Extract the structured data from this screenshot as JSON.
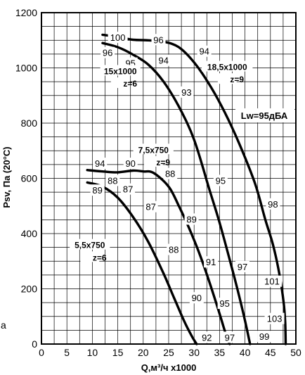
{
  "chart_data": {
    "type": "line",
    "xlabel": "Q,м³/ч x1000",
    "ylabel": "Psv, Па (20°C)",
    "xlim": [
      0,
      50
    ],
    "ylim": [
      0,
      1200
    ],
    "x_ticks": [
      "0",
      "5",
      "10",
      "15",
      "20",
      "25",
      "30",
      "35",
      "40",
      "45",
      "50"
    ],
    "y_ticks": [
      "0",
      "200",
      "400",
      "600",
      "800",
      "1000",
      "1200"
    ],
    "grid": true,
    "annotation": "Lw=95дБА",
    "stray_label": "a",
    "series": [
      {
        "name": "18,5x1000 z=9",
        "label_lines": [
          "18,5x1000",
          "z=9"
        ],
        "x": [
          12,
          15,
          18,
          21,
          24,
          27,
          30,
          33,
          36,
          39,
          42,
          44,
          45.5,
          46.8,
          47.6,
          47.9,
          48
        ],
        "y": [
          1120,
          1112,
          1102,
          1100,
          1095,
          1075,
          1020,
          940,
          840,
          720,
          580,
          450,
          360,
          250,
          150,
          80,
          0
        ],
        "noise_labels": [
          {
            "text": "100",
            "x": 15,
            "y": 1108
          },
          {
            "text": "96",
            "x": 23,
            "y": 1100
          },
          {
            "text": "94",
            "x": 32,
            "y": 1058
          },
          {
            "text": "98",
            "x": 45.5,
            "y": 505
          },
          {
            "text": "101",
            "x": 45.3,
            "y": 225
          },
          {
            "text": "103",
            "x": 45.8,
            "y": 90
          },
          {
            "text": "99",
            "x": 43.8,
            "y": 25
          }
        ]
      },
      {
        "name": "15x1000 z=6",
        "label_lines": [
          "15x1000",
          "z=6"
        ],
        "x": [
          12,
          15,
          18,
          21,
          24,
          27,
          30,
          33,
          35,
          37,
          38.5,
          40,
          41
        ],
        "y": [
          1090,
          1075,
          1048,
          1012,
          950,
          860,
          740,
          560,
          440,
          305,
          200,
          85,
          0
        ],
        "noise_labels": [
          {
            "text": "96",
            "x": 13,
            "y": 1053
          },
          {
            "text": "95",
            "x": 17.5,
            "y": 1015
          },
          {
            "text": "94",
            "x": 24,
            "y": 1025
          },
          {
            "text": "93",
            "x": 28.5,
            "y": 910
          },
          {
            "text": "95",
            "x": 35.2,
            "y": 590
          },
          {
            "text": "97",
            "x": 39.5,
            "y": 278
          },
          {
            "text": "95",
            "x": 36,
            "y": 145
          }
        ]
      },
      {
        "name": "7,5x750 z=9",
        "label_lines": [
          "7,5x750",
          "z=9"
        ],
        "x": [
          9,
          12,
          15,
          18,
          20,
          22,
          25,
          27,
          29,
          31,
          33,
          35,
          36.5,
          37
        ],
        "y": [
          630,
          625,
          622,
          628,
          625,
          620,
          570,
          500,
          420,
          330,
          225,
          110,
          20,
          0
        ],
        "noise_labels": [
          {
            "text": "94",
            "x": 11.5,
            "y": 652
          },
          {
            "text": "90",
            "x": 17.5,
            "y": 652
          },
          {
            "text": "88",
            "x": 14,
            "y": 590
          },
          {
            "text": "87",
            "x": 17,
            "y": 559
          },
          {
            "text": "88",
            "x": 25.3,
            "y": 615
          },
          {
            "text": "89",
            "x": 29.5,
            "y": 450
          },
          {
            "text": "91",
            "x": 33.3,
            "y": 295
          },
          {
            "text": "97",
            "x": 37,
            "y": 22
          }
        ]
      },
      {
        "name": "5,5x750 z=6",
        "label_lines": [
          "5,5x750",
          "z=6"
        ],
        "x": [
          9,
          12,
          15,
          18,
          21,
          24,
          26,
          28,
          29.5,
          30.5
        ],
        "y": [
          585,
          570,
          530,
          460,
          370,
          255,
          170,
          85,
          30,
          0
        ],
        "noise_labels": [
          {
            "text": "89",
            "x": 11,
            "y": 555
          },
          {
            "text": "87",
            "x": 21.5,
            "y": 495
          },
          {
            "text": "88",
            "x": 26,
            "y": 340
          },
          {
            "text": "90",
            "x": 30.5,
            "y": 165
          },
          {
            "text": "92",
            "x": 32.5,
            "y": 22
          }
        ]
      }
    ],
    "curve_label_positions": [
      {
        "x": 36.5,
        "y1": 1000,
        "y2": 955
      },
      {
        "x": 15.5,
        "y1": 985,
        "y2": 940
      },
      {
        "x": 22,
        "y1": 700,
        "y2": 655
      },
      {
        "x": 9.5,
        "y1": 355,
        "y2": 310
      }
    ]
  }
}
